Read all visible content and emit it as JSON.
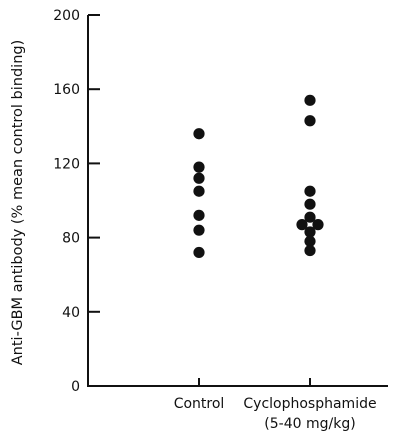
{
  "chart_data": {
    "type": "scatter",
    "ylabel": "Anti-GBM antibody (% mean control binding)",
    "ylim": [
      0,
      200
    ],
    "yticks": [
      0,
      40,
      80,
      120,
      160,
      200
    ],
    "grid": false,
    "categories": [
      "Control",
      "Cyclophosphamide"
    ],
    "category_sublabels": [
      "",
      "(5-40 mg/kg)"
    ],
    "series": [
      {
        "category": "Control",
        "points": [
          {
            "offset": 0,
            "y": 136
          },
          {
            "offset": 0,
            "y": 118
          },
          {
            "offset": 0,
            "y": 112
          },
          {
            "offset": 0,
            "y": 105
          },
          {
            "offset": 0,
            "y": 92
          },
          {
            "offset": 0,
            "y": 84
          },
          {
            "offset": 0,
            "y": 72
          }
        ]
      },
      {
        "category": "Cyclophosphamide",
        "points": [
          {
            "offset": 0,
            "y": 154
          },
          {
            "offset": 0,
            "y": 143
          },
          {
            "offset": 0,
            "y": 105
          },
          {
            "offset": 0,
            "y": 98
          },
          {
            "offset": 0,
            "y": 91
          },
          {
            "offset": -1,
            "y": 87
          },
          {
            "offset": 1,
            "y": 87
          },
          {
            "offset": 0,
            "y": 83
          },
          {
            "offset": 0,
            "y": 78
          },
          {
            "offset": 0,
            "y": 73
          }
        ]
      }
    ],
    "colors": {
      "ink": "#111111",
      "background": "#ffffff"
    }
  }
}
